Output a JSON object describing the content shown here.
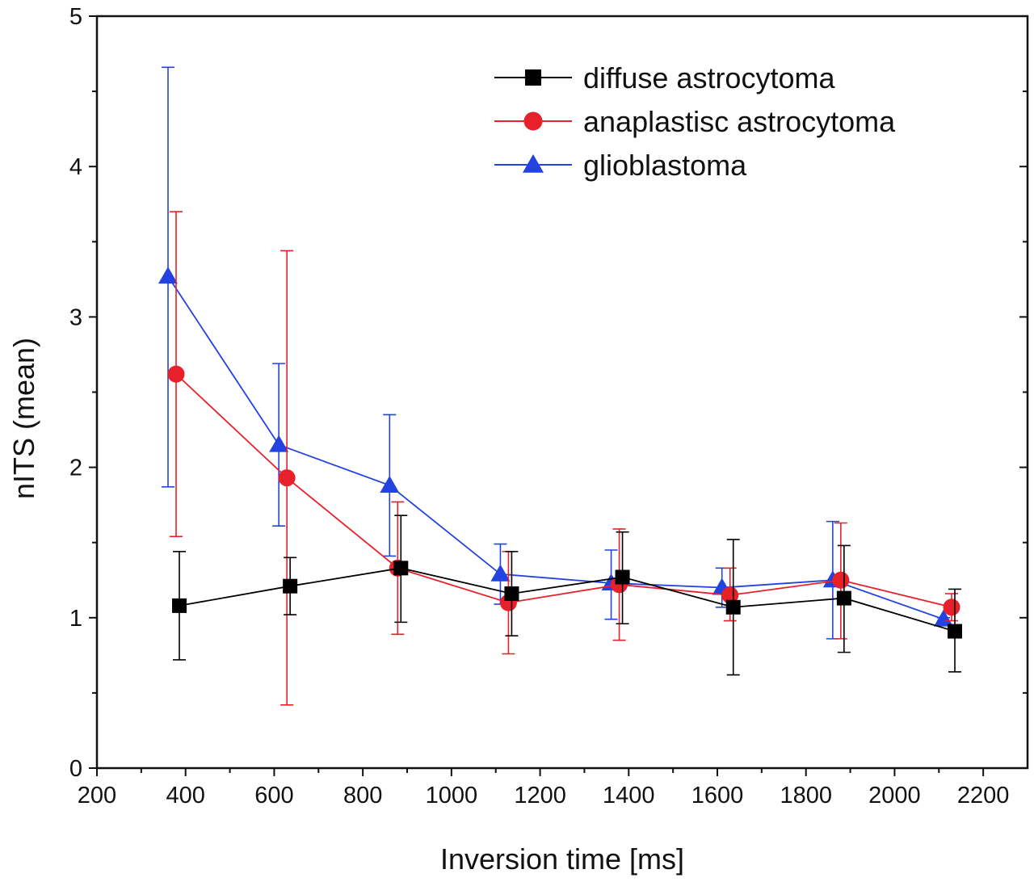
{
  "chart_data": {
    "type": "line",
    "xlabel": "Inversion time [ms]",
    "ylabel": "nITS (mean)",
    "xlim": [
      200,
      2300
    ],
    "ylim": [
      0,
      5
    ],
    "x_ticks": [
      "200",
      "400",
      "600",
      "800",
      "1000",
      "1200",
      "1400",
      "1600",
      "1800",
      "2000",
      "2200"
    ],
    "y_ticks": [
      "0",
      "1",
      "2",
      "3",
      "4",
      "5"
    ],
    "grid": false,
    "legend_position": "top-right",
    "error_bars": true,
    "series": [
      {
        "name": "diffuse astrocytoma",
        "color": "#000000",
        "marker": "square",
        "points": [
          {
            "x": 375,
            "y": 1.08,
            "err_low": 0.72,
            "err_high": 1.44
          },
          {
            "x": 625,
            "y": 1.21,
            "err_low": 1.02,
            "err_high": 1.4
          },
          {
            "x": 875,
            "y": 1.33,
            "err_low": 0.97,
            "err_high": 1.68
          },
          {
            "x": 1125,
            "y": 1.16,
            "err_low": 0.88,
            "err_high": 1.44
          },
          {
            "x": 1375,
            "y": 1.27,
            "err_low": 0.96,
            "err_high": 1.57
          },
          {
            "x": 1625,
            "y": 1.07,
            "err_low": 0.62,
            "err_high": 1.52
          },
          {
            "x": 1875,
            "y": 1.13,
            "err_low": 0.77,
            "err_high": 1.48
          },
          {
            "x": 2125,
            "y": 0.91,
            "err_low": 0.64,
            "err_high": 1.19
          }
        ]
      },
      {
        "name": "anaplastisc astrocytoma",
        "color": "#e8202a",
        "marker": "circle",
        "points": [
          {
            "x": 375,
            "y": 2.62,
            "err_low": 1.54,
            "err_high": 3.7
          },
          {
            "x": 625,
            "y": 1.93,
            "err_low": 0.42,
            "err_high": 3.44
          },
          {
            "x": 875,
            "y": 1.33,
            "err_low": 0.89,
            "err_high": 1.77
          },
          {
            "x": 1125,
            "y": 1.1,
            "err_low": 0.76,
            "err_high": 1.44
          },
          {
            "x": 1375,
            "y": 1.22,
            "err_low": 0.85,
            "err_high": 1.59
          },
          {
            "x": 1625,
            "y": 1.15,
            "err_low": 0.98,
            "err_high": 1.33
          },
          {
            "x": 1875,
            "y": 1.25,
            "err_low": 0.86,
            "err_high": 1.63
          },
          {
            "x": 2125,
            "y": 1.07,
            "err_low": 0.98,
            "err_high": 1.16
          }
        ]
      },
      {
        "name": "glioblastoma",
        "color": "#2343e0",
        "marker": "triangle",
        "points": [
          {
            "x": 375,
            "y": 3.27,
            "err_low": 1.87,
            "err_high": 4.66
          },
          {
            "x": 625,
            "y": 2.15,
            "err_low": 1.61,
            "err_high": 2.69
          },
          {
            "x": 875,
            "y": 1.88,
            "err_low": 1.41,
            "err_high": 2.35
          },
          {
            "x": 1125,
            "y": 1.29,
            "err_low": 1.09,
            "err_high": 1.49
          },
          {
            "x": 1375,
            "y": 1.23,
            "err_low": 0.99,
            "err_high": 1.45
          },
          {
            "x": 1625,
            "y": 1.2,
            "err_low": 1.07,
            "err_high": 1.33
          },
          {
            "x": 1875,
            "y": 1.25,
            "err_low": 0.86,
            "err_high": 1.64
          },
          {
            "x": 2125,
            "y": 0.99,
            "err_low": 0.98,
            "err_high": 1.0
          }
        ]
      }
    ]
  }
}
